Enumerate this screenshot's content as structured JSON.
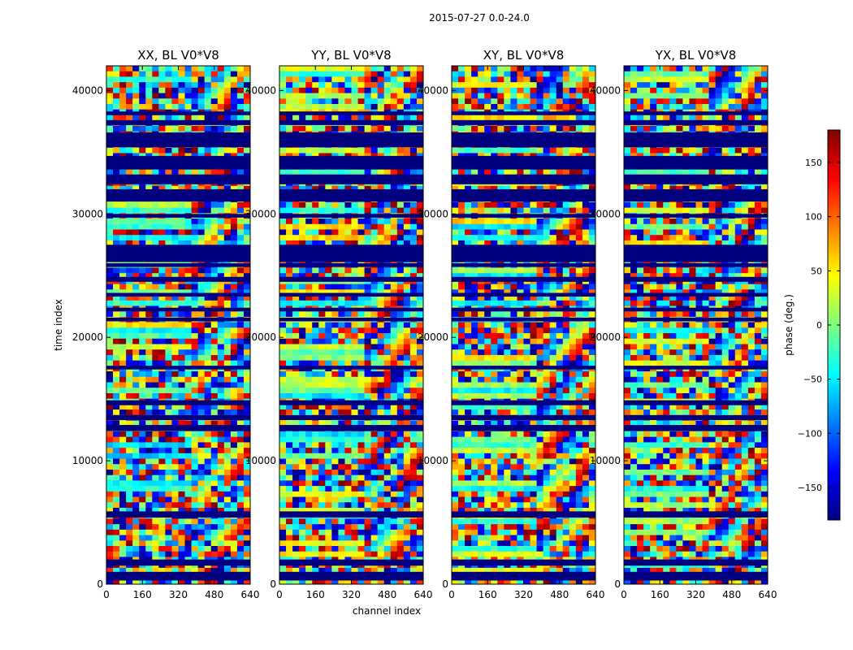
{
  "figure": {
    "suptitle": "2015-07-27 0.0-24.0",
    "ylabel": "time index",
    "xlabel": "channel index"
  },
  "colorbar": {
    "label": "phase (deg.)",
    "range": [
      -180,
      180
    ],
    "ticks": [
      -150,
      -100,
      -50,
      0,
      50,
      100,
      150
    ],
    "tick_labels": [
      "−150",
      "−100",
      "−50",
      "0",
      "50",
      "100",
      "150"
    ],
    "colormap": "jet",
    "colors": [
      "#00007f",
      "#0000ff",
      "#007fff",
      "#00ffff",
      "#7fff7f",
      "#ffff00",
      "#ff7f00",
      "#ff0000",
      "#7f0000"
    ]
  },
  "chart_data": {
    "type": "heatmap",
    "description_of_values": "visibility phase in degrees per (channel, time) sample",
    "x_range": [
      0,
      640
    ],
    "x_ticks": [
      0,
      160,
      320,
      480,
      640
    ],
    "y_range": [
      0,
      42000
    ],
    "y_ticks": [
      0,
      10000,
      20000,
      30000,
      40000
    ],
    "value_range": [
      -180,
      180
    ],
    "panels": [
      {
        "title": "XX, BL V0*V8",
        "pol": "XX"
      },
      {
        "title": "YY, BL V0*V8",
        "pol": "YY"
      },
      {
        "title": "XY, BL V0*V8",
        "pol": "XY"
      },
      {
        "title": "YX, BL V0*V8",
        "pol": "YX"
      }
    ],
    "flagged_time_ranges": [
      [
        300,
        1000
      ],
      [
        1500,
        2000
      ],
      [
        5400,
        5900
      ],
      [
        12400,
        12900
      ],
      [
        13300,
        13700
      ],
      [
        14500,
        14900
      ],
      [
        17400,
        17700
      ],
      [
        21300,
        21600
      ],
      [
        22100,
        22400
      ],
      [
        23300,
        23600
      ],
      [
        24500,
        24900
      ],
      [
        25700,
        26000
      ],
      [
        26100,
        27500
      ],
      [
        29700,
        30000
      ],
      [
        31000,
        32000
      ],
      [
        32400,
        33200
      ],
      [
        33600,
        34700
      ],
      [
        35400,
        36600
      ],
      [
        37200,
        37600
      ],
      [
        38000,
        38300
      ]
    ]
  }
}
